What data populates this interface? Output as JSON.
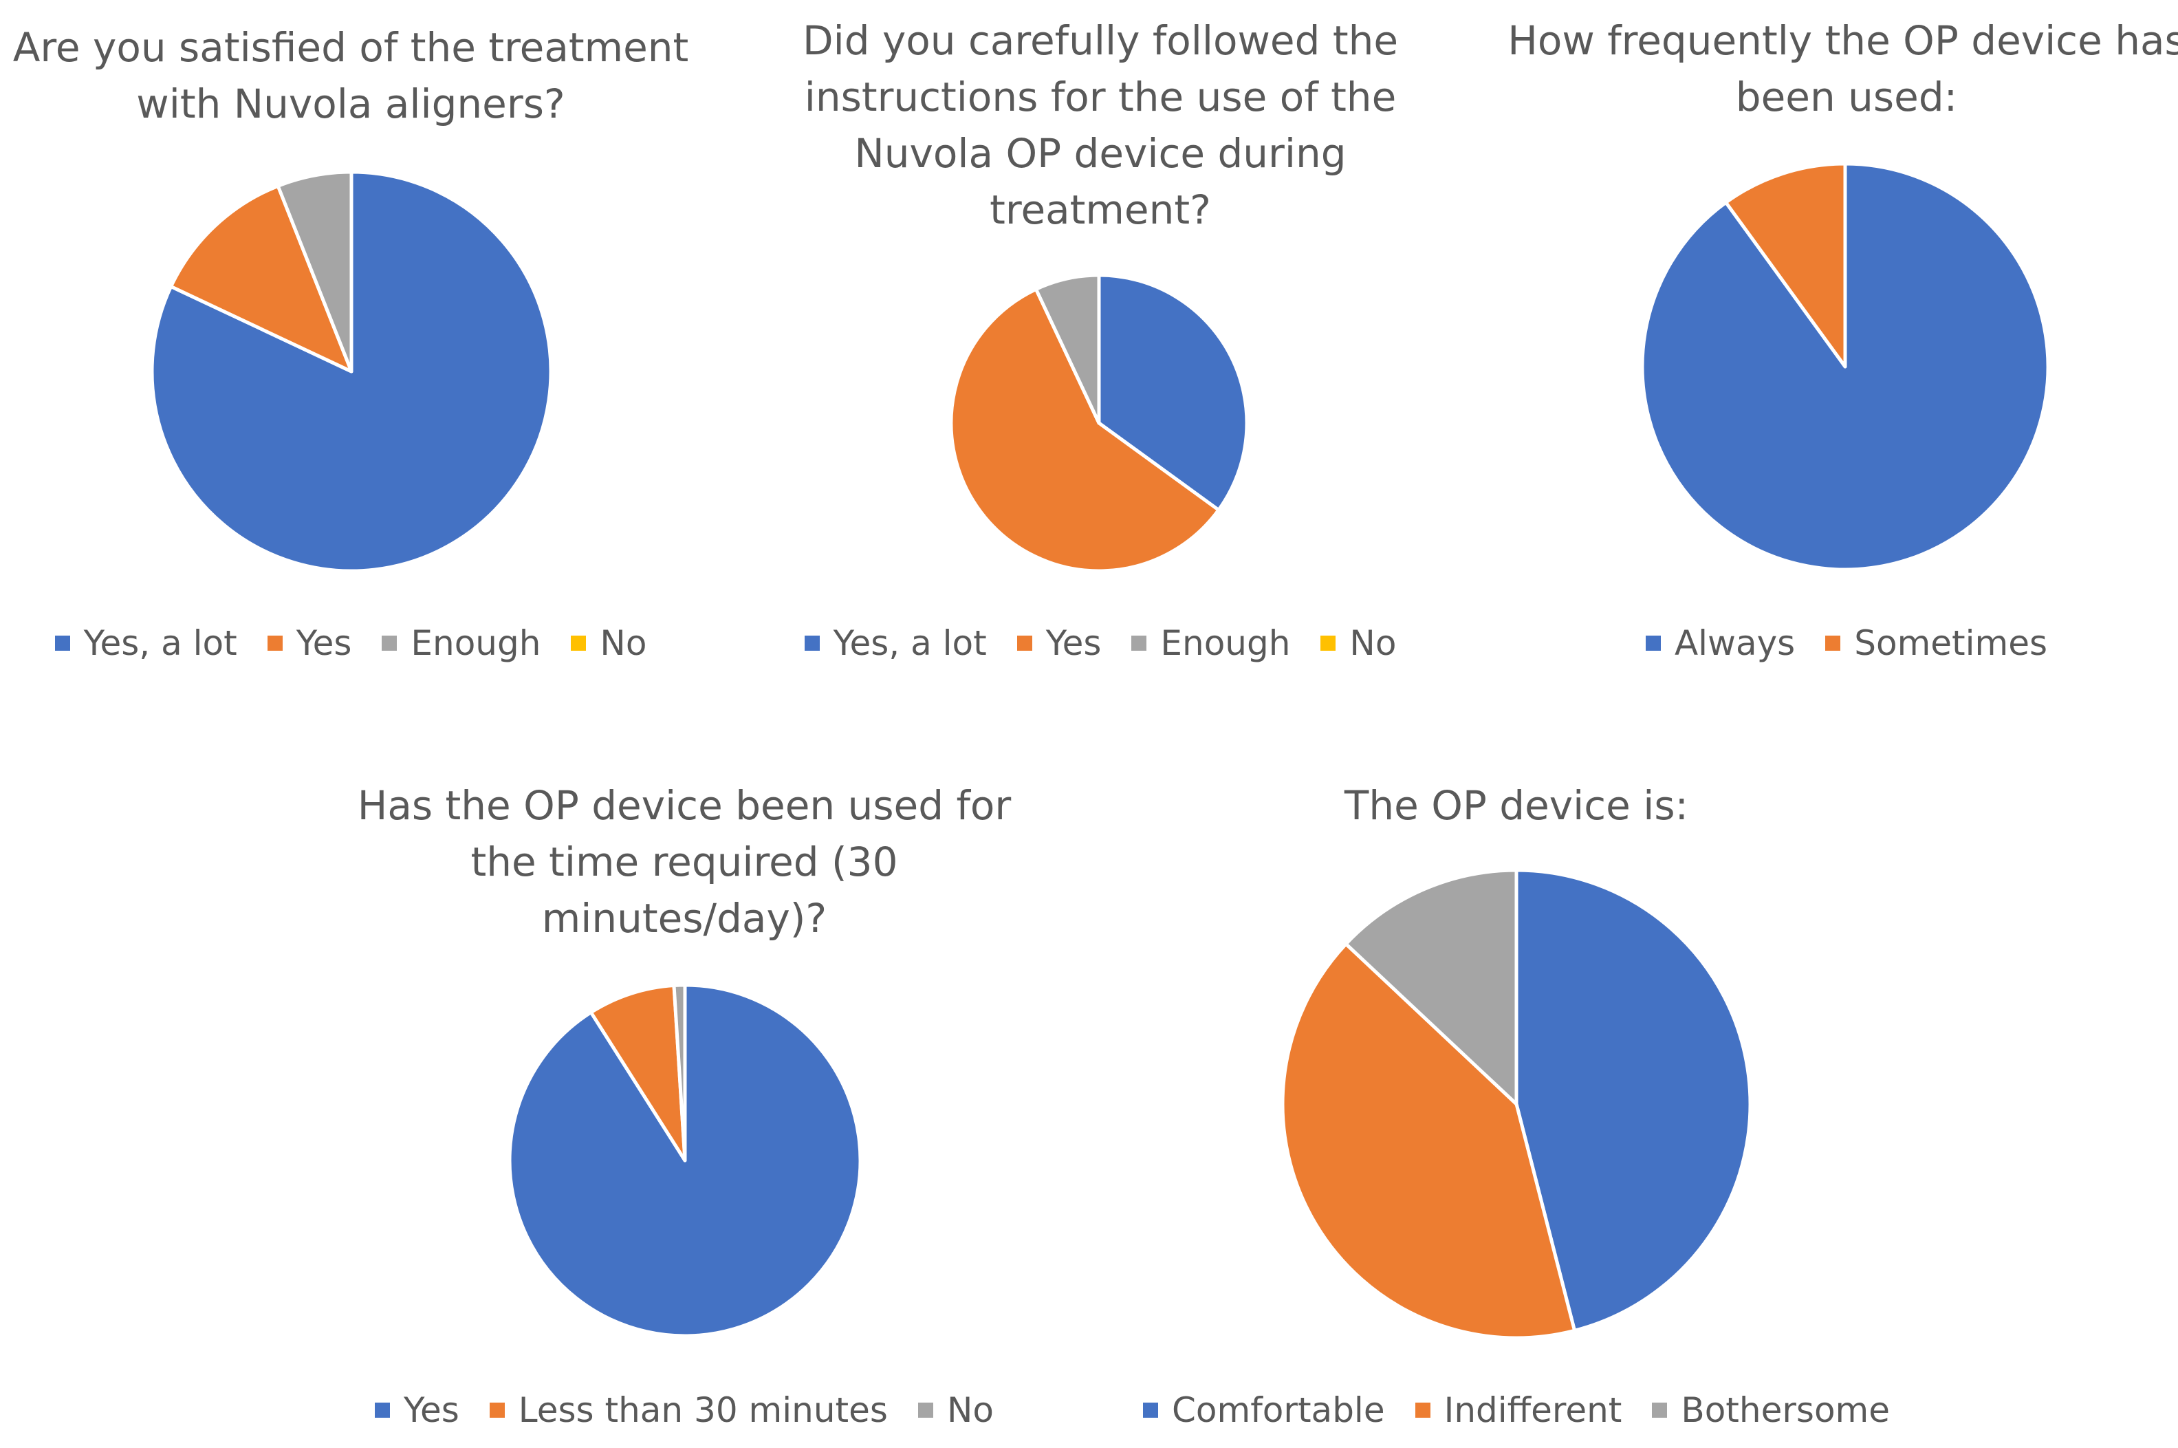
{
  "chart_data": [
    {
      "type": "pie",
      "title": "Are you satisfied of the treatment\nwith Nuvola aligners?",
      "categories": [
        "Yes, a lot",
        "Yes",
        "Enough",
        "No"
      ],
      "values": [
        82,
        12,
        6,
        0
      ],
      "colors": [
        "#4472C4",
        "#ED7D31",
        "#A5A5A5",
        "#FFC000"
      ],
      "legend_position": "bottom"
    },
    {
      "type": "pie",
      "title": "Did you carefully followed the\ninstructions for the use of the\nNuvola OP device during\ntreatment?",
      "categories": [
        "Yes, a lot",
        "Yes",
        "Enough",
        "No"
      ],
      "values": [
        35,
        58,
        7,
        0
      ],
      "colors": [
        "#4472C4",
        "#ED7D31",
        "#A5A5A5",
        "#FFC000"
      ],
      "legend_position": "bottom"
    },
    {
      "type": "pie",
      "title": "How frequently the OP device has\nbeen used:",
      "categories": [
        "Always",
        "Sometimes"
      ],
      "values": [
        90,
        10
      ],
      "colors": [
        "#4472C4",
        "#ED7D31"
      ],
      "legend_position": "bottom"
    },
    {
      "type": "pie",
      "title": "Has the OP device been used for\nthe time required (30\nminutes/day)?",
      "categories": [
        "Yes",
        "Less than 30 minutes",
        "No"
      ],
      "values": [
        91,
        8,
        1
      ],
      "colors": [
        "#4472C4",
        "#ED7D31",
        "#A5A5A5"
      ],
      "legend_position": "bottom"
    },
    {
      "type": "pie",
      "title": "The OP device is:",
      "categories": [
        "Comfortable",
        "Indifferent",
        "Bothersome"
      ],
      "values": [
        46,
        41,
        13
      ],
      "colors": [
        "#4472C4",
        "#ED7D31",
        "#A5A5A5"
      ],
      "legend_position": "bottom"
    }
  ]
}
